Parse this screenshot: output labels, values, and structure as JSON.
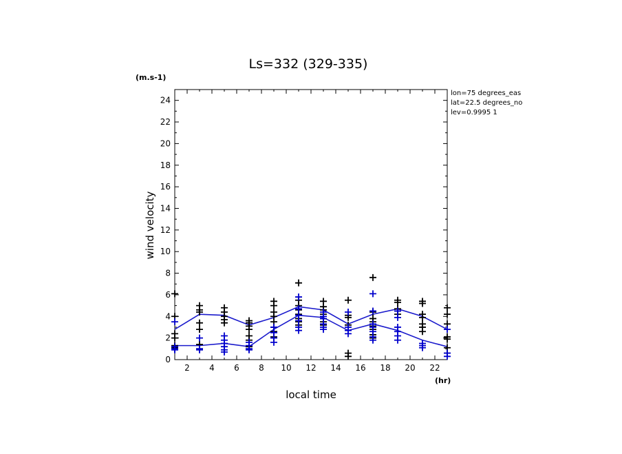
{
  "chart_data": {
    "type": "scatter",
    "title": "Ls=332 (329-335)",
    "ylabel": "wind velocity",
    "xlabel": "local time",
    "y_unit": "(m.s-1)",
    "x_unit": "(hr)",
    "xlim": [
      1,
      23
    ],
    "ylim": [
      0,
      25
    ],
    "x_ticks": [
      2,
      4,
      6,
      8,
      10,
      12,
      14,
      16,
      18,
      20,
      22
    ],
    "y_ticks": [
      0,
      2,
      4,
      6,
      8,
      10,
      12,
      14,
      16,
      18,
      20,
      22,
      24
    ],
    "annotations": [
      "lon=75 degrees_eas",
      "lat=22.5 degrees_no",
      "lev=0.9995 1"
    ],
    "colors": {
      "black_series": "#000000",
      "blue_series": "#0000cc",
      "lines": "#1a1acc"
    },
    "series": [
      {
        "color": "black",
        "points": [
          [
            1,
            6.1
          ],
          [
            1,
            4.0
          ],
          [
            1,
            2.4
          ],
          [
            1,
            2.0
          ],
          [
            1,
            1.3
          ],
          [
            1,
            1.1
          ],
          [
            1,
            1.0
          ],
          [
            3,
            5.0
          ],
          [
            3,
            4.6
          ],
          [
            3,
            4.4
          ],
          [
            3,
            3.4
          ],
          [
            3,
            2.8
          ],
          [
            3,
            1.4
          ],
          [
            3,
            1.0
          ],
          [
            5,
            4.8
          ],
          [
            5,
            4.4
          ],
          [
            5,
            4.0
          ],
          [
            5,
            3.7
          ],
          [
            5,
            3.4
          ],
          [
            7,
            3.6
          ],
          [
            7,
            3.4
          ],
          [
            7,
            3.1
          ],
          [
            7,
            2.8
          ],
          [
            7,
            2.2
          ],
          [
            7,
            1.8
          ],
          [
            7,
            1.2
          ],
          [
            7,
            1.0
          ],
          [
            9,
            5.4
          ],
          [
            9,
            5.0
          ],
          [
            9,
            4.4
          ],
          [
            9,
            4.0
          ],
          [
            9,
            3.5
          ],
          [
            9,
            3.0
          ],
          [
            9,
            2.6
          ],
          [
            9,
            2.1
          ],
          [
            11,
            7.1
          ],
          [
            11,
            5.5
          ],
          [
            11,
            5.0
          ],
          [
            11,
            4.6
          ],
          [
            11,
            4.2
          ],
          [
            11,
            3.8
          ],
          [
            11,
            3.5
          ],
          [
            11,
            3.2
          ],
          [
            13,
            5.4
          ],
          [
            13,
            4.9
          ],
          [
            13,
            4.6
          ],
          [
            13,
            4.2
          ],
          [
            13,
            3.8
          ],
          [
            13,
            3.5
          ],
          [
            13,
            3.2
          ],
          [
            15,
            5.5
          ],
          [
            15,
            4.1
          ],
          [
            15,
            3.9
          ],
          [
            15,
            3.2
          ],
          [
            15,
            0.6
          ],
          [
            15,
            0.3
          ],
          [
            17,
            7.6
          ],
          [
            17,
            4.4
          ],
          [
            17,
            3.8
          ],
          [
            17,
            3.5
          ],
          [
            17,
            3.1
          ],
          [
            17,
            2.8
          ],
          [
            17,
            2.3
          ],
          [
            17,
            2.0
          ],
          [
            19,
            5.5
          ],
          [
            19,
            5.3
          ],
          [
            19,
            4.7
          ],
          [
            19,
            4.5
          ],
          [
            19,
            4.2
          ],
          [
            21,
            5.4
          ],
          [
            21,
            5.2
          ],
          [
            21,
            4.2
          ],
          [
            21,
            3.9
          ],
          [
            21,
            3.3
          ],
          [
            21,
            3.0
          ],
          [
            21,
            2.6
          ],
          [
            23,
            4.8
          ],
          [
            23,
            4.2
          ],
          [
            23,
            3.3
          ],
          [
            23,
            2.1
          ],
          [
            23,
            1.9
          ],
          [
            23,
            1.1
          ],
          [
            23,
            0.6
          ]
        ]
      },
      {
        "color": "blue",
        "points": [
          [
            1,
            3.5
          ],
          [
            1,
            1.2
          ],
          [
            1,
            1.0
          ],
          [
            1,
            0.9
          ],
          [
            3,
            2.0
          ],
          [
            3,
            1.0
          ],
          [
            3,
            0.9
          ],
          [
            5,
            2.2
          ],
          [
            5,
            1.8
          ],
          [
            5,
            1.5
          ],
          [
            5,
            1.2
          ],
          [
            5,
            0.9
          ],
          [
            5,
            0.7
          ],
          [
            7,
            1.6
          ],
          [
            7,
            1.3
          ],
          [
            7,
            1.0
          ],
          [
            7,
            0.9
          ],
          [
            9,
            3.0
          ],
          [
            9,
            2.5
          ],
          [
            9,
            2.0
          ],
          [
            9,
            1.6
          ],
          [
            11,
            5.8
          ],
          [
            11,
            4.7
          ],
          [
            11,
            4.1
          ],
          [
            11,
            3.6
          ],
          [
            11,
            3.0
          ],
          [
            11,
            2.7
          ],
          [
            13,
            4.4
          ],
          [
            13,
            4.0
          ],
          [
            13,
            3.8
          ],
          [
            13,
            3.3
          ],
          [
            13,
            3.0
          ],
          [
            13,
            2.8
          ],
          [
            15,
            4.4
          ],
          [
            15,
            3.0
          ],
          [
            15,
            2.7
          ],
          [
            15,
            2.4
          ],
          [
            17,
            6.1
          ],
          [
            17,
            4.5
          ],
          [
            17,
            3.3
          ],
          [
            17,
            3.0
          ],
          [
            17,
            2.6
          ],
          [
            17,
            2.1
          ],
          [
            17,
            1.8
          ],
          [
            19,
            4.5
          ],
          [
            19,
            3.9
          ],
          [
            19,
            3.0
          ],
          [
            19,
            2.6
          ],
          [
            19,
            2.2
          ],
          [
            19,
            1.8
          ],
          [
            21,
            1.5
          ],
          [
            21,
            1.3
          ],
          [
            21,
            1.1
          ],
          [
            23,
            2.8
          ],
          [
            23,
            0.6
          ],
          [
            23,
            0.3
          ]
        ]
      }
    ],
    "lines": [
      {
        "x": [
          1,
          3,
          5,
          7,
          9,
          11,
          13,
          15,
          17,
          19,
          21,
          23
        ],
        "y": [
          2.8,
          4.2,
          4.1,
          3.2,
          3.9,
          4.9,
          4.6,
          3.3,
          4.2,
          4.7,
          4.0,
          2.8
        ]
      },
      {
        "x": [
          1,
          3,
          5,
          7,
          9,
          11,
          13,
          15,
          17,
          19,
          21,
          23
        ],
        "y": [
          1.3,
          1.3,
          1.5,
          1.2,
          2.8,
          4.1,
          3.9,
          2.7,
          3.3,
          2.7,
          1.8,
          1.2
        ]
      }
    ]
  }
}
